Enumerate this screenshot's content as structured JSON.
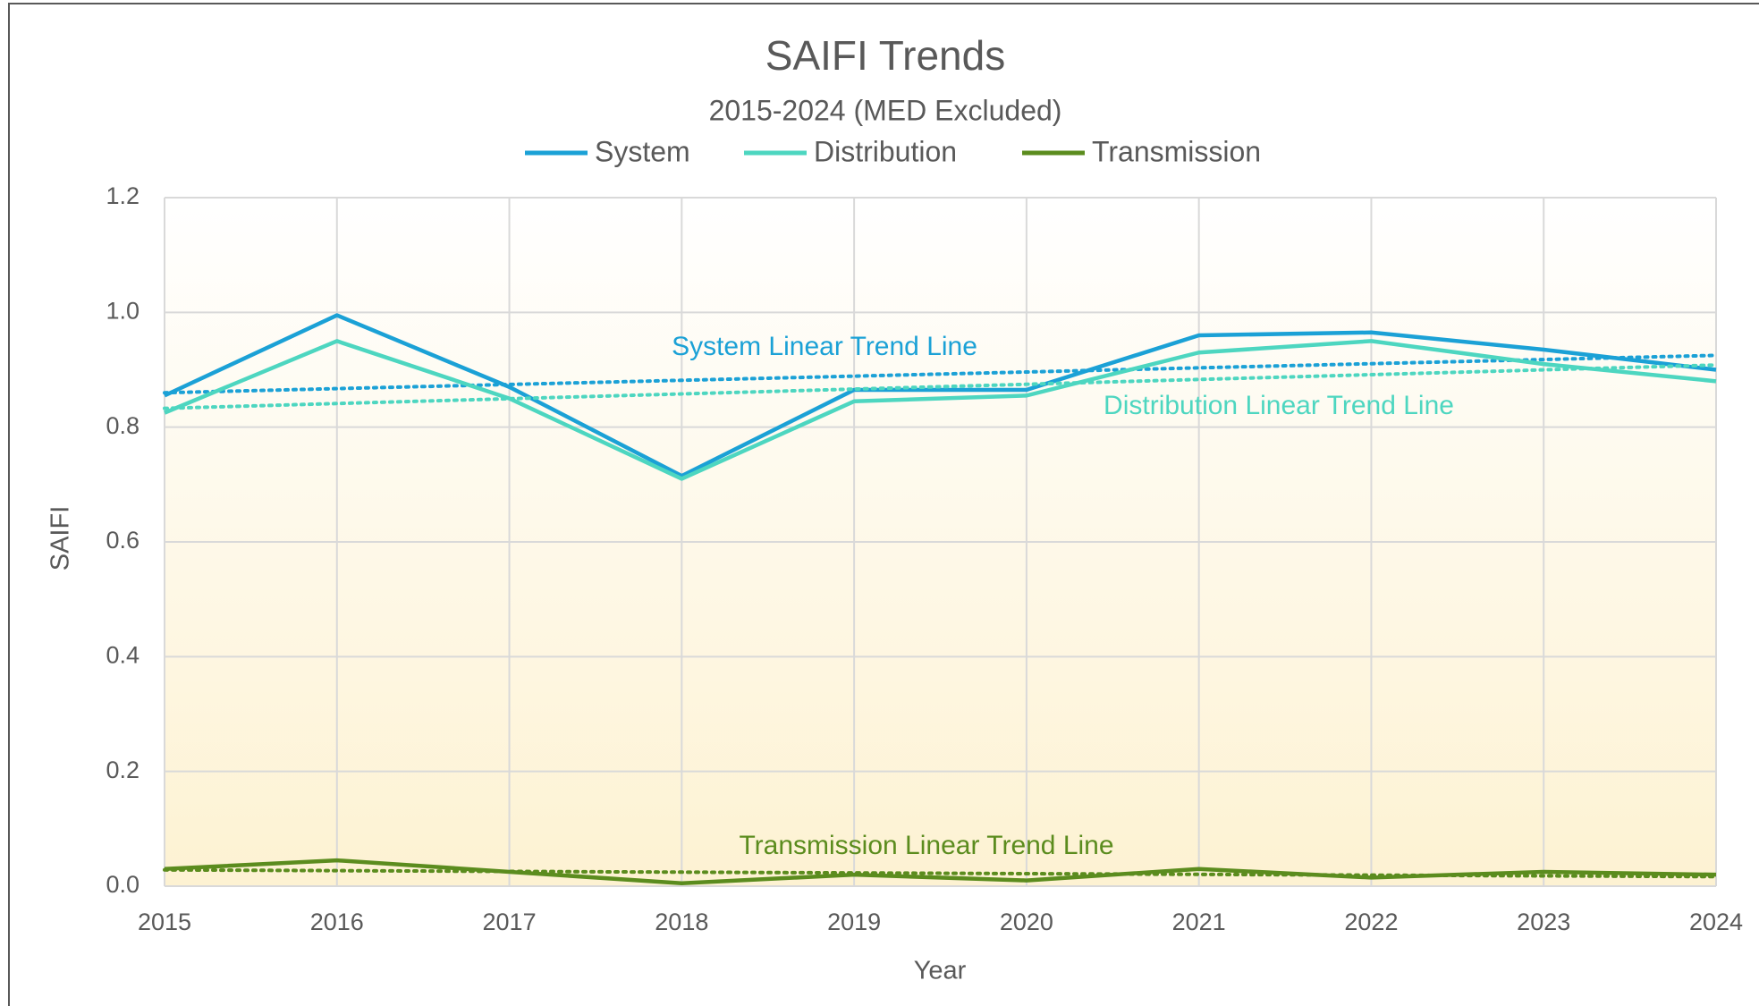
{
  "chart_data": {
    "type": "line",
    "title": "SAIFI Trends",
    "subtitle": "2015-2024 (MED Excluded)",
    "x_label": "Year",
    "y_label": "SAIFI",
    "x": [
      2015,
      2016,
      2017,
      2018,
      2019,
      2020,
      2021,
      2022,
      2023,
      2024
    ],
    "xlim": [
      2015,
      2024
    ],
    "xticks": [
      2015,
      2016,
      2017,
      2018,
      2019,
      2020,
      2021,
      2022,
      2023,
      2024
    ],
    "ylim": [
      0,
      1.2
    ],
    "yticks": [
      {
        "value": 0,
        "label": "0.0"
      },
      {
        "value": 0.2,
        "label": "0.2"
      },
      {
        "value": 0.4,
        "label": "0.4"
      },
      {
        "value": 0.6,
        "label": "0.6"
      },
      {
        "value": 0.8,
        "label": "0.8"
      },
      {
        "value": 1,
        "label": "1.0"
      },
      {
        "value": 1.2,
        "label": "1.2"
      }
    ],
    "grid": true,
    "legend": "top",
    "trendline": "linear",
    "series": [
      {
        "name": "System",
        "color": "#1ba1d6",
        "values": [
          0.855,
          0.995,
          0.87,
          0.715,
          0.865,
          0.865,
          0.96,
          0.965,
          0.935,
          0.9
        ]
      },
      {
        "name": "Distribution",
        "color": "#4dd6c0",
        "values": [
          0.825,
          0.95,
          0.85,
          0.71,
          0.845,
          0.855,
          0.93,
          0.95,
          0.91,
          0.88
        ]
      },
      {
        "name": "Transmission",
        "color": "#5b8c1e",
        "values": [
          0.03,
          0.045,
          0.025,
          0.005,
          0.02,
          0.01,
          0.03,
          0.015,
          0.025,
          0.02
        ]
      }
    ],
    "annotations": [
      "System Linear Trend Line",
      "Distribution Linear Trend Line",
      "Transmission Linear Trend Line"
    ]
  }
}
